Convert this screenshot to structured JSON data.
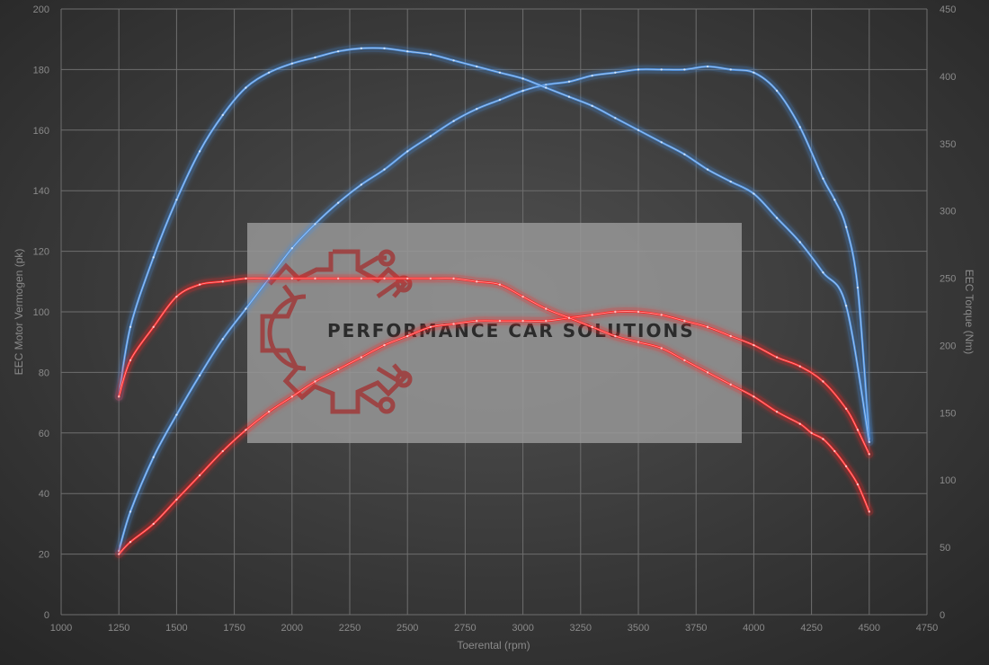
{
  "chart_data": {
    "type": "line",
    "xlabel": "Toerental (rpm)",
    "ylabel_left": "EEC Motor Vermogen (pk)",
    "ylabel_right": "EEC Torque (Nm)",
    "xlim": [
      1000,
      4750
    ],
    "ylim_left": [
      0,
      200
    ],
    "ylim_right": [
      0,
      450
    ],
    "x_ticks": [
      1000,
      1250,
      1500,
      1750,
      2000,
      2250,
      2500,
      2750,
      3000,
      3250,
      3500,
      3750,
      4000,
      4250,
      4500,
      4750
    ],
    "y_left_ticks": [
      0,
      20,
      40,
      60,
      80,
      100,
      120,
      140,
      160,
      180,
      200
    ],
    "y_right_ticks": [
      0,
      50,
      100,
      150,
      200,
      250,
      300,
      350,
      400,
      450
    ],
    "grid": true,
    "legend": "none",
    "series": [
      {
        "axis": "left",
        "color": "#4a8fe0",
        "x": [
          1250,
          1300,
          1400,
          1500,
          1600,
          1700,
          1800,
          1900,
          2000,
          2100,
          2200,
          2300,
          2400,
          2500,
          2600,
          2700,
          2800,
          2900,
          3000,
          3100,
          3200,
          3300,
          3400,
          3500,
          3600,
          3700,
          3800,
          3900,
          4000,
          4100,
          4200,
          4300,
          4350,
          4400,
          4450,
          4500
        ],
        "y": [
          21,
          34,
          52,
          66,
          79,
          91,
          101,
          111,
          121,
          129,
          136,
          142,
          147,
          153,
          158,
          163,
          167,
          170,
          173,
          175,
          176,
          178,
          179,
          180,
          180,
          180,
          181,
          180,
          179,
          173,
          161,
          144,
          137,
          128,
          108,
          58
        ]
      },
      {
        "axis": "left",
        "color": "#4a8fe0",
        "x": [
          1250,
          1300,
          1400,
          1500,
          1600,
          1700,
          1800,
          1900,
          2000,
          2100,
          2200,
          2300,
          2400,
          2500,
          2600,
          2700,
          2800,
          2900,
          3000,
          3100,
          3200,
          3300,
          3400,
          3500,
          3600,
          3700,
          3800,
          3900,
          4000,
          4100,
          4200,
          4300,
          4400,
          4500
        ],
        "y": [
          72,
          95,
          118,
          137,
          153,
          165,
          174,
          179,
          182,
          184,
          186,
          187,
          187,
          186,
          185,
          183,
          181,
          179,
          177,
          174,
          171,
          168,
          164,
          160,
          156,
          152,
          147,
          143,
          139,
          131,
          123,
          113,
          102,
          57
        ]
      },
      {
        "axis": "left",
        "color": "#ff2525",
        "x": [
          1250,
          1300,
          1400,
          1500,
          1600,
          1700,
          1800,
          1900,
          2000,
          2100,
          2200,
          2300,
          2400,
          2500,
          2600,
          2700,
          2800,
          2900,
          3000,
          3100,
          3200,
          3300,
          3400,
          3500,
          3600,
          3700,
          3800,
          3900,
          4000,
          4100,
          4200,
          4300,
          4400,
          4450,
          4500
        ],
        "y": [
          20,
          24,
          30,
          38,
          46,
          54,
          61,
          67,
          72,
          77,
          81,
          85,
          89,
          92,
          95,
          96,
          97,
          97,
          97,
          97,
          98,
          99,
          100,
          100,
          99,
          97,
          95,
          92,
          89,
          85,
          82,
          77,
          68,
          61,
          53
        ]
      },
      {
        "axis": "left",
        "color": "#ff2525",
        "x": [
          1250,
          1300,
          1400,
          1500,
          1600,
          1700,
          1800,
          1900,
          2000,
          2100,
          2200,
          2300,
          2400,
          2500,
          2600,
          2700,
          2800,
          2900,
          3000,
          3100,
          3200,
          3300,
          3400,
          3500,
          3600,
          3700,
          3800,
          3900,
          4000,
          4100,
          4200,
          4250,
          4300,
          4350,
          4400,
          4450,
          4500
        ],
        "y": [
          72,
          84,
          95,
          105,
          109,
          110,
          111,
          111,
          111,
          111,
          111,
          111,
          111,
          111,
          111,
          111,
          110,
          109,
          105,
          101,
          98,
          95,
          92,
          90,
          88,
          84,
          80,
          76,
          72,
          67,
          63,
          60,
          58,
          54,
          49,
          43,
          34
        ]
      }
    ]
  },
  "logo": {
    "text": "PERFORMANCE CAR SOLUTIONS",
    "panel_color": "#9a9a9a",
    "emblem_color": "#a03a3a",
    "text_color": "#2b2b2b"
  },
  "colors": {
    "background_center": "#505050",
    "background_edge": "#262626",
    "grid": "#6e6e6e",
    "tick_text": "#8a8a8a"
  }
}
